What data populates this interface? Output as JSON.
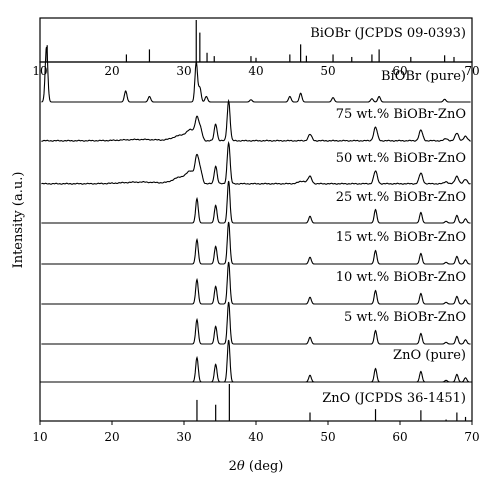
{
  "chart_data": {
    "type": "line",
    "xlabel_prefix": "2",
    "xlabel_symbol": "θ",
    "xlabel_suffix": " (deg)",
    "ylabel": "Intensity (a.u.)",
    "xlim": [
      10,
      70
    ],
    "x_ticks": [
      "10",
      "20",
      "30",
      "40",
      "50",
      "60",
      "70"
    ],
    "grid": false,
    "reference_top": {
      "label": "BiOBr (JCPDS 09-0393)",
      "peaks": [
        {
          "x": 11.0,
          "h": 0.4
        },
        {
          "x": 22.0,
          "h": 0.18
        },
        {
          "x": 25.2,
          "h": 0.3
        },
        {
          "x": 31.7,
          "h": 1.0
        },
        {
          "x": 32.2,
          "h": 0.7
        },
        {
          "x": 33.2,
          "h": 0.22
        },
        {
          "x": 34.2,
          "h": 0.14
        },
        {
          "x": 39.3,
          "h": 0.14
        },
        {
          "x": 40.0,
          "h": 0.1
        },
        {
          "x": 44.7,
          "h": 0.18
        },
        {
          "x": 46.2,
          "h": 0.42
        },
        {
          "x": 47.0,
          "h": 0.15
        },
        {
          "x": 50.7,
          "h": 0.18
        },
        {
          "x": 53.3,
          "h": 0.12
        },
        {
          "x": 56.1,
          "h": 0.18
        },
        {
          "x": 57.1,
          "h": 0.3
        },
        {
          "x": 61.5,
          "h": 0.12
        },
        {
          "x": 66.2,
          "h": 0.16
        },
        {
          "x": 67.5,
          "h": 0.12
        }
      ]
    },
    "series": [
      {
        "name": "BiOBr (pure)",
        "baseline": 0.0,
        "peaks": [
          [
            10.9,
            1.0,
            0.18
          ],
          [
            21.9,
            0.2,
            0.18
          ],
          [
            25.2,
            0.1,
            0.18
          ],
          [
            31.7,
            0.72,
            0.18
          ],
          [
            32.2,
            0.26,
            0.18
          ],
          [
            33.1,
            0.1,
            0.18
          ],
          [
            39.3,
            0.04,
            0.18
          ],
          [
            44.7,
            0.1,
            0.18
          ],
          [
            46.2,
            0.16,
            0.18
          ],
          [
            50.7,
            0.08,
            0.18
          ],
          [
            56.1,
            0.06,
            0.18
          ],
          [
            57.1,
            0.1,
            0.18
          ],
          [
            66.2,
            0.05,
            0.18
          ]
        ]
      },
      {
        "name": "75 wt.% BiOBr-ZnO",
        "baseline": 0.02,
        "peaks": [
          [
            24.0,
            0.03,
            2.5
          ],
          [
            29.5,
            0.12,
            1.0
          ],
          [
            31.0,
            0.22,
            0.6
          ],
          [
            31.8,
            0.45,
            0.25
          ],
          [
            32.3,
            0.25,
            0.25
          ],
          [
            34.4,
            0.4,
            0.2
          ],
          [
            36.2,
            0.95,
            0.2
          ],
          [
            47.5,
            0.15,
            0.25
          ],
          [
            56.6,
            0.32,
            0.25
          ],
          [
            62.9,
            0.25,
            0.25
          ],
          [
            66.4,
            0.05,
            0.25
          ],
          [
            67.9,
            0.18,
            0.25
          ],
          [
            69.1,
            0.1,
            0.25
          ]
        ]
      },
      {
        "name": "50 wt.% BiOBr-ZnO",
        "baseline": 0.02,
        "peaks": [
          [
            24.0,
            0.04,
            2.5
          ],
          [
            29.5,
            0.15,
            1.0
          ],
          [
            31.0,
            0.25,
            0.6
          ],
          [
            31.8,
            0.55,
            0.25
          ],
          [
            32.3,
            0.28,
            0.25
          ],
          [
            34.4,
            0.42,
            0.2
          ],
          [
            36.2,
            0.98,
            0.2
          ],
          [
            46.5,
            0.06,
            0.6
          ],
          [
            47.5,
            0.16,
            0.25
          ],
          [
            56.6,
            0.3,
            0.25
          ],
          [
            62.9,
            0.25,
            0.25
          ],
          [
            66.4,
            0.05,
            0.25
          ],
          [
            67.9,
            0.18,
            0.25
          ],
          [
            69.1,
            0.1,
            0.25
          ]
        ]
      },
      {
        "name": "25 wt.% BiOBr-ZnO",
        "baseline": 0.0,
        "peaks": [
          [
            31.8,
            0.58,
            0.18
          ],
          [
            34.4,
            0.42,
            0.18
          ],
          [
            36.2,
            1.0,
            0.18
          ],
          [
            47.5,
            0.16,
            0.18
          ],
          [
            56.6,
            0.32,
            0.18
          ],
          [
            62.9,
            0.25,
            0.18
          ],
          [
            66.4,
            0.04,
            0.18
          ],
          [
            67.9,
            0.18,
            0.18
          ],
          [
            69.1,
            0.1,
            0.18
          ]
        ]
      },
      {
        "name": "15 wt.% BiOBr-ZnO",
        "baseline": 0.0,
        "peaks": [
          [
            31.8,
            0.58,
            0.18
          ],
          [
            34.4,
            0.42,
            0.18
          ],
          [
            36.2,
            1.0,
            0.18
          ],
          [
            47.5,
            0.16,
            0.18
          ],
          [
            56.6,
            0.32,
            0.18
          ],
          [
            62.9,
            0.25,
            0.18
          ],
          [
            66.4,
            0.04,
            0.18
          ],
          [
            67.9,
            0.18,
            0.18
          ],
          [
            69.1,
            0.1,
            0.18
          ]
        ]
      },
      {
        "name": "10 wt.% BiOBr-ZnO",
        "baseline": 0.0,
        "peaks": [
          [
            31.8,
            0.58,
            0.18
          ],
          [
            34.4,
            0.42,
            0.18
          ],
          [
            36.2,
            1.0,
            0.18
          ],
          [
            47.5,
            0.16,
            0.18
          ],
          [
            56.6,
            0.32,
            0.18
          ],
          [
            62.9,
            0.25,
            0.18
          ],
          [
            66.4,
            0.04,
            0.18
          ],
          [
            67.9,
            0.18,
            0.18
          ],
          [
            69.1,
            0.1,
            0.18
          ]
        ]
      },
      {
        "name": "5 wt.% BiOBr-ZnO",
        "baseline": 0.0,
        "peaks": [
          [
            31.8,
            0.58,
            0.18
          ],
          [
            34.4,
            0.42,
            0.18
          ],
          [
            36.2,
            1.0,
            0.18
          ],
          [
            47.5,
            0.16,
            0.18
          ],
          [
            56.6,
            0.32,
            0.18
          ],
          [
            62.9,
            0.25,
            0.18
          ],
          [
            66.4,
            0.04,
            0.18
          ],
          [
            67.9,
            0.18,
            0.18
          ],
          [
            69.1,
            0.1,
            0.18
          ]
        ]
      },
      {
        "name": "ZnO (pure)",
        "baseline": 0.0,
        "peaks": [
          [
            31.8,
            0.58,
            0.18
          ],
          [
            34.4,
            0.42,
            0.18
          ],
          [
            36.2,
            1.0,
            0.18
          ],
          [
            47.5,
            0.16,
            0.18
          ],
          [
            56.6,
            0.32,
            0.18
          ],
          [
            62.9,
            0.25,
            0.18
          ],
          [
            66.4,
            0.04,
            0.18
          ],
          [
            67.9,
            0.18,
            0.18
          ],
          [
            69.1,
            0.1,
            0.18
          ]
        ]
      }
    ],
    "reference_bottom": {
      "label": "ZnO (JCPDS 36-1451)",
      "peaks": [
        {
          "x": 31.8,
          "h": 0.57
        },
        {
          "x": 34.4,
          "h": 0.44
        },
        {
          "x": 36.3,
          "h": 1.0
        },
        {
          "x": 47.5,
          "h": 0.23
        },
        {
          "x": 56.6,
          "h": 0.32
        },
        {
          "x": 62.9,
          "h": 0.29
        },
        {
          "x": 66.4,
          "h": 0.04
        },
        {
          "x": 67.9,
          "h": 0.23
        },
        {
          "x": 69.1,
          "h": 0.11
        }
      ]
    }
  }
}
